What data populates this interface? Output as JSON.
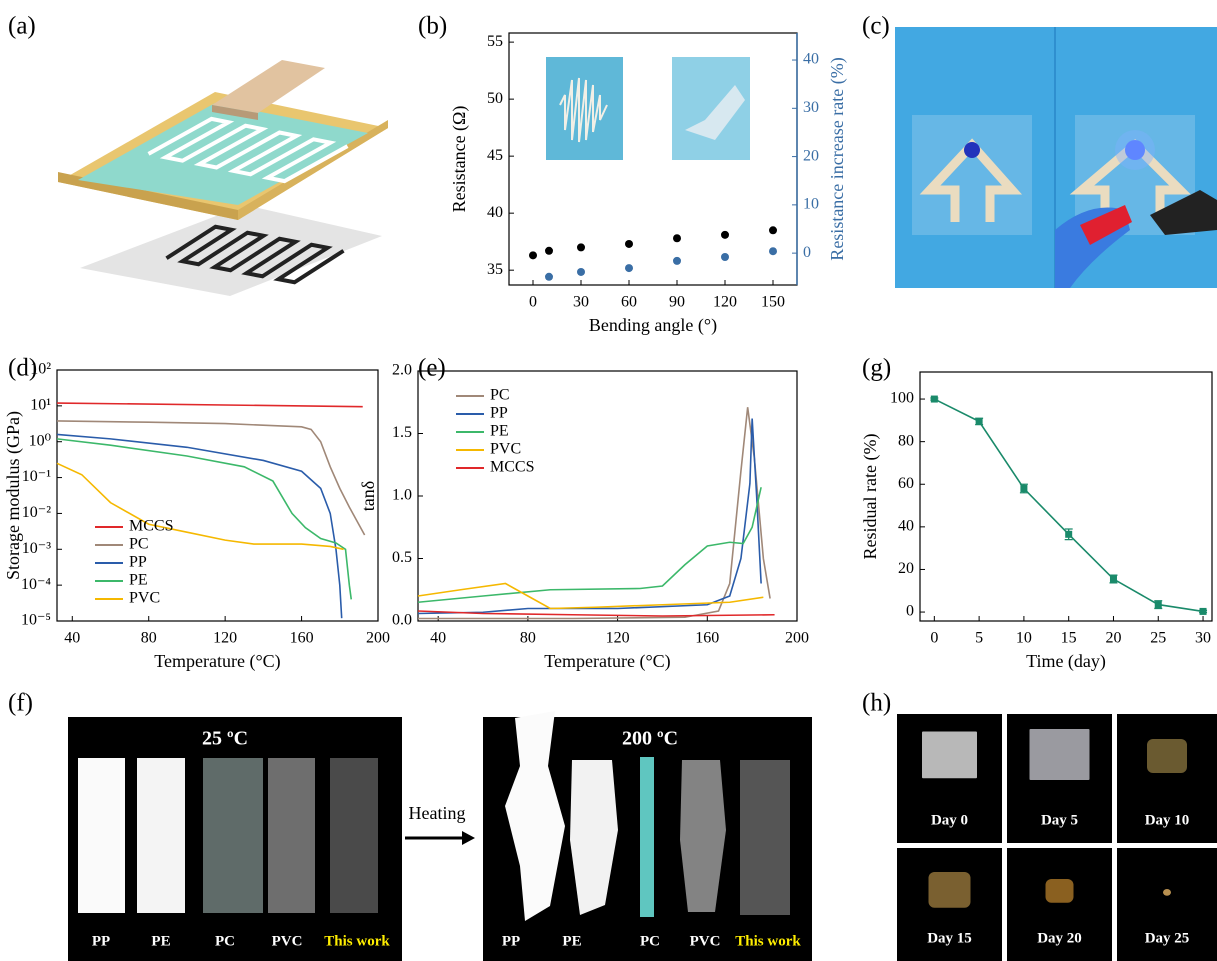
{
  "panel_labels": [
    "(a)",
    "(b)",
    "(c)",
    "(d)",
    "(e)",
    "(f)",
    "(g)",
    "(h)"
  ],
  "chart_data": [
    {
      "type": "scatter",
      "xlabel": "Bending angle (°)",
      "ylabel": "Resistance (Ω)",
      "y2label": "Resistance increase rate (%)",
      "xlim": [
        -15,
        165
      ],
      "xticks": [
        0,
        30,
        60,
        90,
        120,
        150
      ],
      "ylim": [
        33.7,
        55.8
      ],
      "yticks": [
        35,
        40,
        45,
        50,
        55
      ],
      "y2lim": [
        -6.6,
        45.6
      ],
      "y2ticks": [
        0,
        10,
        20,
        30,
        40
      ],
      "series": [
        {
          "color": "#000000",
          "x": [
            0,
            10,
            30,
            60,
            90,
            120,
            150
          ],
          "values": [
            36.3,
            36.7,
            37.0,
            37.3,
            37.8,
            38.1,
            38.5
          ]
        },
        {
          "color": "#3a6ea5",
          "axis": "y2",
          "x": [
            10,
            30,
            60,
            90,
            120,
            150
          ],
          "values": [
            -4.9,
            -3.9,
            -3.1,
            -1.6,
            -0.8,
            0.4
          ]
        }
      ]
    },
    {
      "type": "line",
      "xlabel": "Temperature (°C)",
      "ylabel": "Storage modulus (GPa)",
      "yscale": "log",
      "legend": "lower left",
      "xlim": [
        32,
        200
      ],
      "xticks": [
        40,
        80,
        120,
        160,
        200
      ],
      "ylim": [
        1e-05,
        100
      ],
      "yticks": [
        {
          "value": 1e-05,
          "label": "10⁻⁵"
        },
        {
          "value": 0.0001,
          "label": "10⁻⁴"
        },
        {
          "value": 0.001,
          "label": "10⁻³"
        },
        {
          "value": 0.01,
          "label": "10⁻²"
        },
        {
          "value": 0.1,
          "label": "10⁻¹"
        },
        {
          "value": 1,
          "label": "10⁰"
        },
        {
          "value": 10,
          "label": "10¹"
        },
        {
          "value": 100,
          "label": "10²"
        }
      ],
      "series": [
        {
          "name": "MCCS",
          "color": "#e0282a",
          "x": [
            32,
            192
          ],
          "values": [
            12,
            9.5
          ]
        },
        {
          "name": "PC",
          "color": "#a08878",
          "x": [
            32,
            80,
            120,
            160,
            165,
            170,
            175,
            180,
            185,
            193
          ],
          "values": [
            3.8,
            3.5,
            3.2,
            2.6,
            2.2,
            1.0,
            0.2,
            0.05,
            0.015,
            0.0025
          ]
        },
        {
          "name": "PP",
          "color": "#2a5caa",
          "x": [
            32,
            60,
            100,
            140,
            160,
            170,
            175,
            178,
            180,
            181
          ],
          "values": [
            1.6,
            1.2,
            0.7,
            0.3,
            0.15,
            0.05,
            0.01,
            0.001,
            0.0001,
            1.2e-05
          ]
        },
        {
          "name": "PE",
          "color": "#3cb86a",
          "x": [
            32,
            60,
            100,
            130,
            145,
            155,
            162,
            170,
            178,
            183,
            185,
            186
          ],
          "values": [
            1.2,
            0.8,
            0.4,
            0.2,
            0.08,
            0.01,
            0.004,
            0.002,
            0.0015,
            0.001,
            0.0001,
            4e-05
          ]
        },
        {
          "name": "PVC",
          "color": "#f5b800",
          "x": [
            32,
            45,
            60,
            80,
            100,
            120,
            135,
            160,
            175,
            182
          ],
          "values": [
            0.25,
            0.12,
            0.02,
            0.005,
            0.003,
            0.0018,
            0.0014,
            0.0014,
            0.0012,
            0.001
          ]
        }
      ]
    },
    {
      "type": "line",
      "xlabel": "Temperature (°C)",
      "ylabel": "tanδ",
      "legend": "upper left",
      "xlim": [
        31,
        200
      ],
      "xticks": [
        40,
        80,
        120,
        160,
        200
      ],
      "ylim": [
        0,
        2
      ],
      "yticks": [
        {
          "value": 0,
          "label": "0.0"
        },
        0.5,
        {
          "value": 1,
          "label": "1.0"
        },
        1.5,
        {
          "value": 2,
          "label": "2.0"
        }
      ],
      "series": [
        {
          "name": "PC",
          "color": "#a08878",
          "x": [
            31,
            100,
            150,
            165,
            170,
            175,
            178,
            181,
            185,
            188
          ],
          "values": [
            0.02,
            0.02,
            0.03,
            0.08,
            0.3,
            1.2,
            1.71,
            1.3,
            0.5,
            0.18
          ]
        },
        {
          "name": "PP",
          "color": "#2a5caa",
          "x": [
            31,
            60,
            80,
            120,
            160,
            170,
            175,
            179,
            180,
            182,
            184
          ],
          "values": [
            0.06,
            0.07,
            0.1,
            0.1,
            0.13,
            0.2,
            0.5,
            1.1,
            1.62,
            1.0,
            0.3
          ]
        },
        {
          "name": "PE",
          "color": "#3cb86a",
          "x": [
            31,
            60,
            90,
            130,
            140,
            150,
            160,
            170,
            176,
            180,
            184
          ],
          "values": [
            0.15,
            0.2,
            0.25,
            0.26,
            0.28,
            0.45,
            0.6,
            0.63,
            0.62,
            0.75,
            1.07
          ]
        },
        {
          "name": "PVC",
          "color": "#f5b800",
          "x": [
            31,
            50,
            70,
            80,
            90,
            110,
            140,
            170,
            185
          ],
          "values": [
            0.2,
            0.25,
            0.3,
            0.2,
            0.1,
            0.11,
            0.13,
            0.15,
            0.19
          ]
        },
        {
          "name": "MCCS",
          "color": "#e0282a",
          "x": [
            31,
            60,
            100,
            140,
            190
          ],
          "values": [
            0.08,
            0.06,
            0.05,
            0.04,
            0.05
          ]
        }
      ]
    },
    {
      "type": "line",
      "xlabel": "Time (day)",
      "ylabel": "Residual rate (%)",
      "marker": "square",
      "xlim": [
        -1.6,
        31
      ],
      "xticks": [
        0,
        5,
        10,
        15,
        20,
        25,
        30
      ],
      "ylim": [
        -4.2,
        112.7
      ],
      "yticks": [
        0,
        20,
        40,
        60,
        80,
        100
      ],
      "series": [
        {
          "color": "#1a8a6a",
          "x": [
            0,
            5,
            10,
            15,
            20,
            25,
            30
          ],
          "values": [
            100,
            89.5,
            58,
            36.5,
            15.5,
            3.5,
            0.3
          ],
          "errors": [
            0.5,
            1.5,
            2,
            2.5,
            1.8,
            1.8,
            0.5
          ]
        }
      ]
    }
  ],
  "photo_f": {
    "before_title": "25 ºC",
    "after_title": "200 ºC",
    "arrow_label": "Heating",
    "before_samples": [
      "PP",
      "PE",
      "PC",
      "PVC",
      "This work"
    ],
    "after_samples": [
      "PP",
      "PE",
      "PC",
      "PVC",
      "This work"
    ]
  },
  "photo_h": {
    "days": [
      "Day 0",
      "Day 5",
      "Day 10",
      "Day 15",
      "Day 20",
      "Day 25"
    ]
  }
}
